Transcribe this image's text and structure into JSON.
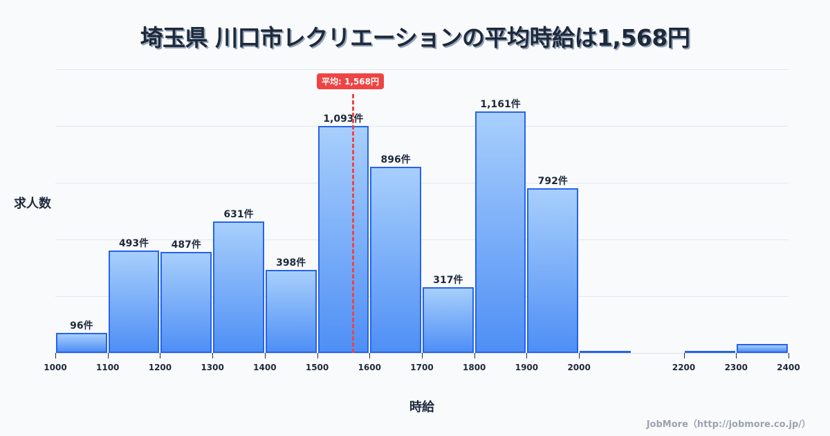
{
  "title": "埼玉県 川口市レクリエーションの平均時給は1,568円",
  "credit": "JobMore（http://jobmore.co.jp/）",
  "average": {
    "label": "平均: 1,568円",
    "value": 1568
  },
  "colors": {
    "bar_border": "#2563eb",
    "bar_top": "#a8cffc",
    "bar_bottom": "#4f8ff5",
    "average_line": "#ef4444",
    "text": "#1e293b"
  },
  "chart_data": {
    "type": "bar",
    "title": "埼玉県 川口市レクリエーションの平均時給は1,568円",
    "xlabel": "時給",
    "ylabel": "求人数",
    "bins": [
      {
        "from": 1000,
        "to": 1100,
        "value": 96,
        "label": "96件"
      },
      {
        "from": 1100,
        "to": 1200,
        "value": 493,
        "label": "493件"
      },
      {
        "from": 1200,
        "to": 1300,
        "value": 487,
        "label": "487件"
      },
      {
        "from": 1300,
        "to": 1400,
        "value": 631,
        "label": "631件"
      },
      {
        "from": 1400,
        "to": 1500,
        "value": 398,
        "label": "398件"
      },
      {
        "from": 1500,
        "to": 1600,
        "value": 1093,
        "label": "1,093件"
      },
      {
        "from": 1600,
        "to": 1700,
        "value": 896,
        "label": "896件"
      },
      {
        "from": 1700,
        "to": 1800,
        "value": 317,
        "label": "317件"
      },
      {
        "from": 1800,
        "to": 1900,
        "value": 1161,
        "label": "1,161件"
      },
      {
        "from": 1900,
        "to": 2000,
        "value": 792,
        "label": "792件"
      },
      {
        "from": 2000,
        "to": 2100,
        "value": 5,
        "label": ""
      },
      {
        "from": 2100,
        "to": 2200,
        "value": 0,
        "label": ""
      },
      {
        "from": 2200,
        "to": 2300,
        "value": 5,
        "label": ""
      },
      {
        "from": 2300,
        "to": 2400,
        "value": 43,
        "label": ""
      }
    ],
    "x_ticks": [
      "1000",
      "1100",
      "1200",
      "1300",
      "1400",
      "1500",
      "1600",
      "1700",
      "1800",
      "1900",
      "2000",
      "2200",
      "2300",
      "2400"
    ],
    "xlim": [
      1000,
      2400
    ],
    "ylim": [
      0,
      1365
    ],
    "grid": true,
    "annotations": [
      {
        "type": "vline",
        "x": 1568,
        "label": "平均: 1,568円"
      }
    ]
  }
}
